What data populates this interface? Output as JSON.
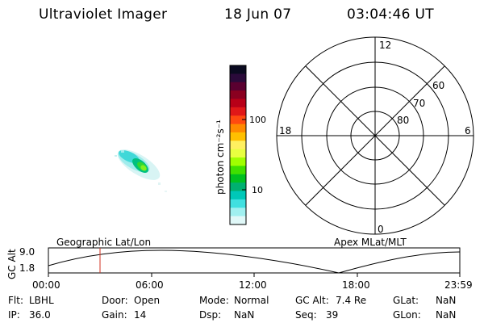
{
  "header": {
    "instrument": "Ultraviolet Imager",
    "date": "18 Jun 07",
    "time": "03:04:46 UT"
  },
  "colorbar": {
    "unit_label": "photon cm⁻²s⁻¹",
    "tick_100": "100",
    "tick_10": "10",
    "colors": [
      "#0a0a20",
      "#2a0a3a",
      "#5a0030",
      "#8a0020",
      "#b80018",
      "#e01818",
      "#ff4a10",
      "#ff8a00",
      "#ffc000",
      "#fff060",
      "#e8ff40",
      "#a0ff00",
      "#40e000",
      "#00c020",
      "#00b070",
      "#00c8b8",
      "#40e0e0",
      "#a0f0f0",
      "#e0f8f8"
    ]
  },
  "polar_grid": {
    "mlt_12": "12",
    "mlt_18": "18",
    "mlt_6": "6",
    "mlt_0": "0",
    "lat_60": "60",
    "lat_70": "70",
    "lat_80": "80"
  },
  "timeline": {
    "left_title": "Geographic Lat/Lon",
    "right_title": "Apex MLat/MLT",
    "y_label": "GC Alt",
    "y_top": "9.0",
    "y_bottom": "1.8",
    "x_ticks": [
      "00:00",
      "06:00",
      "12:00",
      "18:00",
      "23:59"
    ],
    "marker_color": "#d03020"
  },
  "info": {
    "flt_label": "Flt:",
    "flt_value": "LBHL",
    "ip_label": "IP:",
    "ip_value": "36.0",
    "door_label": "Door:",
    "door_value": "Open",
    "gain_label": "Gain:",
    "gain_value": "14",
    "mode_label": "Mode:",
    "mode_value": "Normal",
    "dsp_label": "Dsp:",
    "dsp_value": "NaN",
    "gcalt_label": "GC Alt:",
    "gcalt_value": "7.4 Re",
    "seq_label": "Seq:",
    "seq_value": "39",
    "glat_label": "GLat:",
    "glat_value": "NaN",
    "glon_label": "GLon:",
    "glon_value": "NaN"
  }
}
